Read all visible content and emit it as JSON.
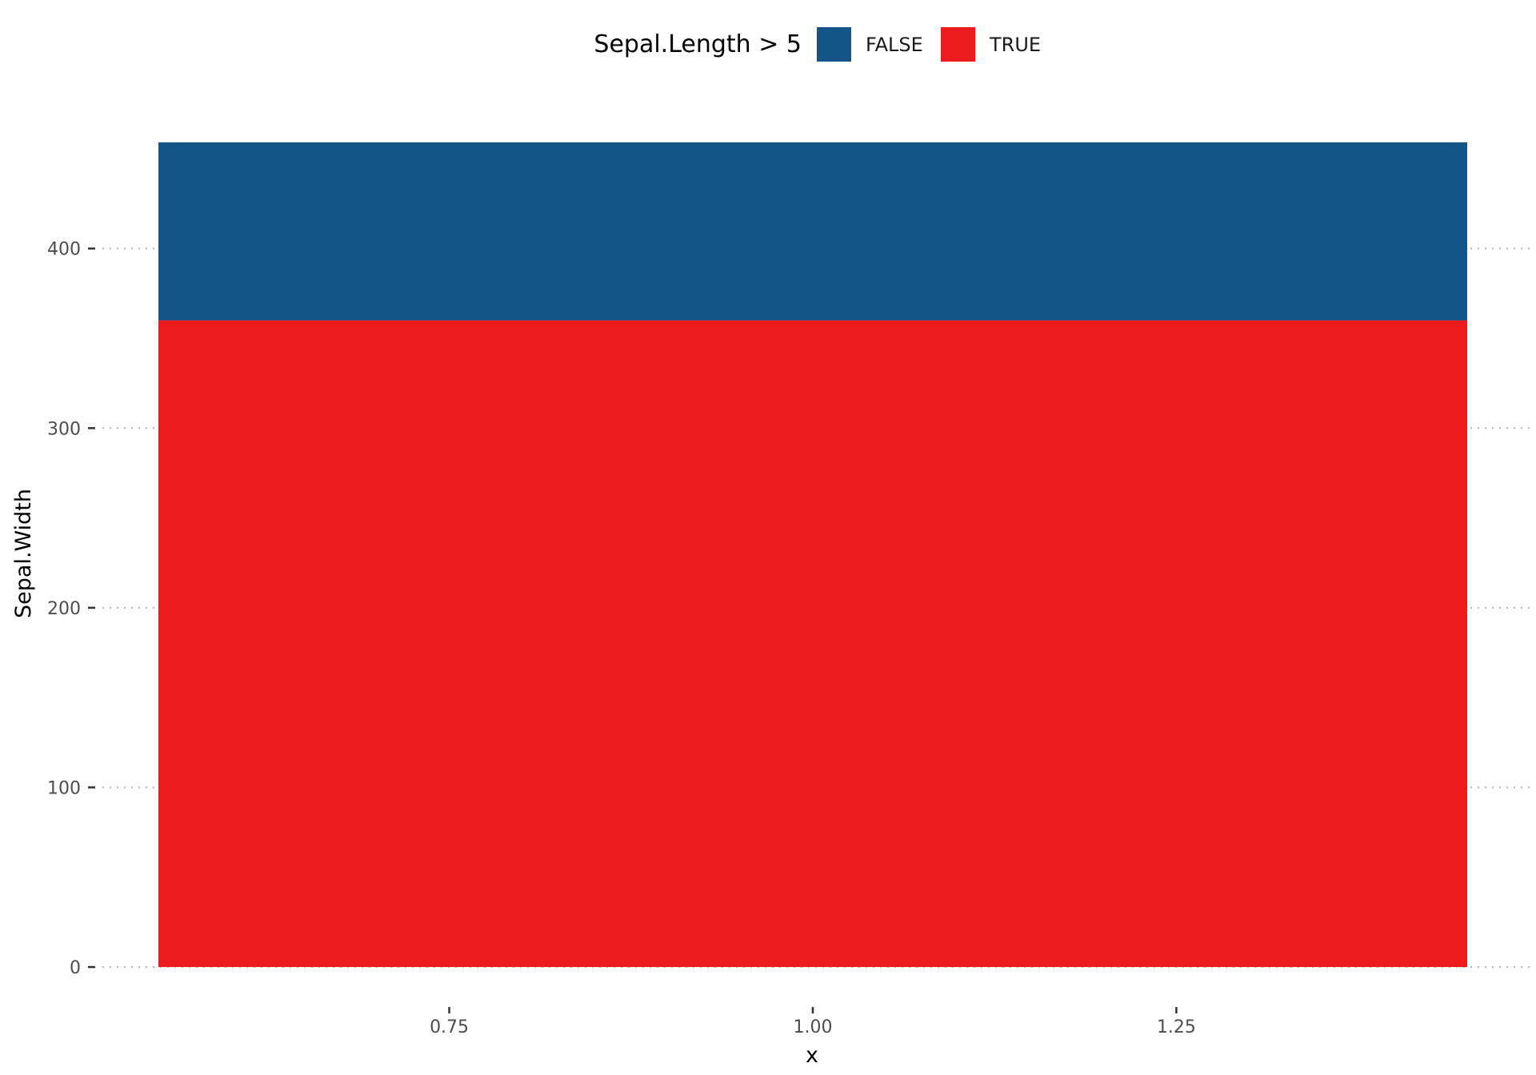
{
  "chart_data": {
    "type": "bar",
    "stacked": true,
    "xlabel": "x",
    "ylabel": "Sepal.Width",
    "x_ticks": [
      0.75,
      1.0,
      1.25
    ],
    "x_tick_labels": [
      "0.75",
      "1.00",
      "1.25"
    ],
    "xlim": [
      0.55,
      1.45
    ],
    "y_ticks": [
      0,
      100,
      200,
      300,
      400
    ],
    "y_tick_labels": [
      "0",
      "100",
      "200",
      "300",
      "400"
    ],
    "ylim": [
      0,
      459.1
    ],
    "bar": {
      "x": 1.0,
      "width": 0.9
    },
    "legend": {
      "title": "Sepal.Length > 5",
      "position": "top",
      "entries": [
        {
          "label": "FALSE",
          "color": "#145588"
        },
        {
          "label": "TRUE",
          "color": "#ec1b1e"
        }
      ]
    },
    "series": [
      {
        "name": "TRUE",
        "color": "#ec1b1e",
        "value": 360.0
      },
      {
        "name": "FALSE",
        "color": "#145588",
        "value": 99.1
      }
    ],
    "grid": {
      "horizontal_major": "dotted",
      "vertical": false
    }
  }
}
